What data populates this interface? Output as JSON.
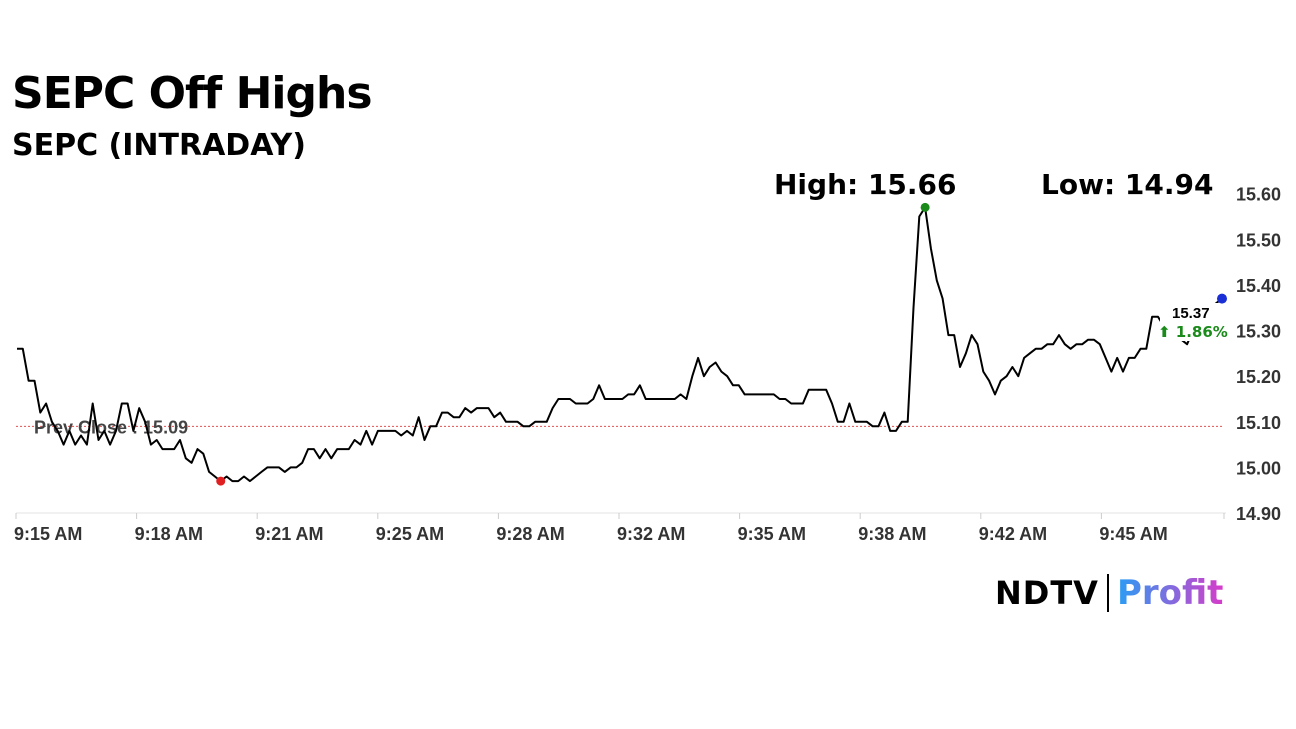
{
  "header": {
    "title": "SEPC Off Highs",
    "subtitle": "SEPC (INTRADAY)"
  },
  "stats": {
    "high_label": "High: 15.66",
    "low_label": "Low: 14.94"
  },
  "last": {
    "price_label": "15.37",
    "change_label": "⬆ 1.86%"
  },
  "brand": {
    "part1": "NDTV",
    "part2": "Profit"
  },
  "colors": {
    "line": "#000000",
    "prev_close": "#e05050",
    "high_dot": "#1a8a1a",
    "low_dot": "#e02020",
    "last_dot": "#1a2fd6",
    "change_up": "#1a8a1a",
    "profit_start": "#2a9df4",
    "profit_end": "#d63cc9"
  },
  "chart_data": {
    "type": "line",
    "title": "SEPC (INTRADAY)",
    "xlabel": "",
    "ylabel": "",
    "ylim": [
      14.9,
      15.63
    ],
    "yticks": [
      "14.90",
      "15.00",
      "15.10",
      "15.20",
      "15.30",
      "15.40",
      "15.50",
      "15.60"
    ],
    "xticks": [
      "9:15 AM",
      "9:18 AM",
      "9:21 AM",
      "9:25 AM",
      "9:28 AM",
      "9:32 AM",
      "9:35 AM",
      "9:38 AM",
      "9:42 AM",
      "9:45 AM"
    ],
    "prev_close": 15.09,
    "prev_close_label": "Prev Close : 15.09",
    "grid": false,
    "series": [
      {
        "values": [
          15.26,
          15.26,
          15.19,
          15.19,
          15.12,
          15.14,
          15.1,
          15.08,
          15.05,
          15.08,
          15.05,
          15.07,
          15.05,
          15.14,
          15.06,
          15.08,
          15.05,
          15.08,
          15.14,
          15.14,
          15.08,
          15.13,
          15.1,
          15.05,
          15.06,
          15.04,
          15.04,
          15.04,
          15.06,
          15.02,
          15.01,
          15.04,
          15.03,
          14.99,
          14.98,
          14.97,
          14.98,
          14.97,
          14.97,
          14.98,
          14.97,
          14.98,
          14.99,
          15.0,
          15.0,
          15.0,
          14.99,
          15.0,
          15.0,
          15.01,
          15.04,
          15.04,
          15.02,
          15.04,
          15.02,
          15.04,
          15.04,
          15.04,
          15.06,
          15.05,
          15.08,
          15.05,
          15.08,
          15.08,
          15.08,
          15.08,
          15.07,
          15.08,
          15.07,
          15.11,
          15.06,
          15.09,
          15.09,
          15.12,
          15.12,
          15.11,
          15.11,
          15.13,
          15.12,
          15.13,
          15.13,
          15.13,
          15.11,
          15.12,
          15.1,
          15.1,
          15.1,
          15.09,
          15.09,
          15.1,
          15.1,
          15.1,
          15.13,
          15.15,
          15.15,
          15.15,
          15.14,
          15.14,
          15.14,
          15.15,
          15.18,
          15.15,
          15.15,
          15.15,
          15.15,
          15.16,
          15.16,
          15.18,
          15.15,
          15.15,
          15.15,
          15.15,
          15.15,
          15.15,
          15.16,
          15.15,
          15.2,
          15.24,
          15.2,
          15.22,
          15.23,
          15.21,
          15.2,
          15.18,
          15.18,
          15.16,
          15.16,
          15.16,
          15.16,
          15.16,
          15.16,
          15.15,
          15.15,
          15.14,
          15.14,
          15.14,
          15.17,
          15.17,
          15.17,
          15.17,
          15.14,
          15.1,
          15.1,
          15.14,
          15.1,
          15.1,
          15.1,
          15.09,
          15.09,
          15.12,
          15.08,
          15.08,
          15.1,
          15.1,
          15.35,
          15.55,
          15.57,
          15.48,
          15.41,
          15.37,
          15.29,
          15.29,
          15.22,
          15.25,
          15.29,
          15.27,
          15.21,
          15.19,
          15.16,
          15.19,
          15.2,
          15.22,
          15.2,
          15.24,
          15.25,
          15.26,
          15.26,
          15.27,
          15.27,
          15.29,
          15.27,
          15.26,
          15.27,
          15.27,
          15.28,
          15.28,
          15.27,
          15.24,
          15.21,
          15.24,
          15.21,
          15.24,
          15.24,
          15.26,
          15.26,
          15.33,
          15.33,
          15.31,
          15.3,
          15.29,
          15.28,
          15.27,
          15.3,
          15.32,
          15.34,
          15.35,
          15.36,
          15.37
        ]
      }
    ],
    "markers": {
      "high_value": 15.57,
      "low_value": 14.97,
      "last_value": 15.37
    }
  }
}
